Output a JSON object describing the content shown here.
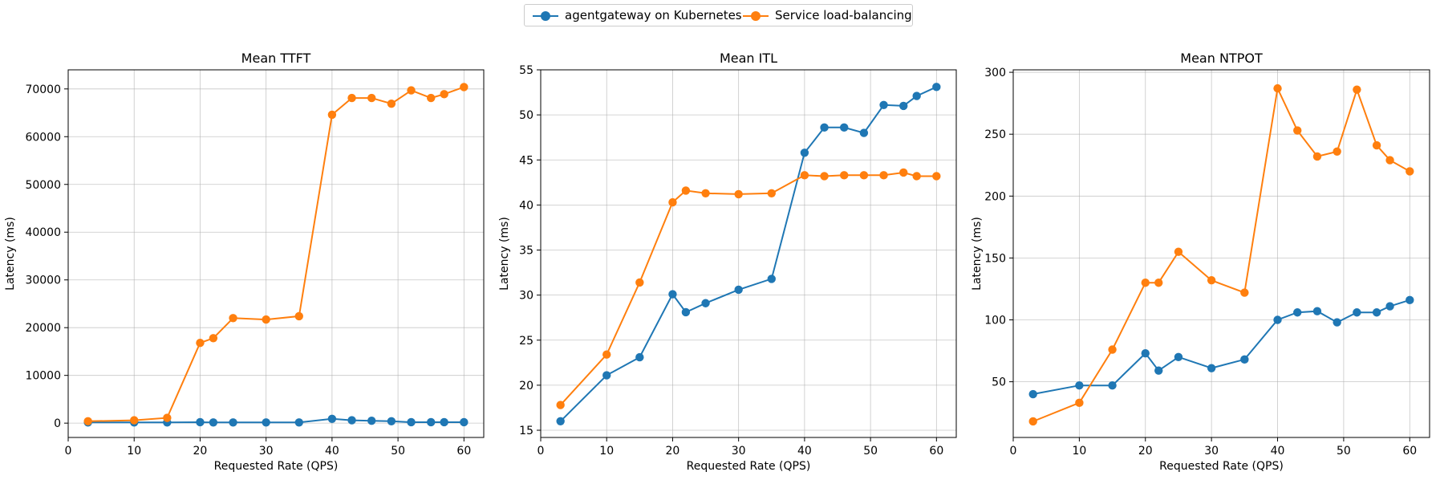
{
  "legend": {
    "placement": "top-center",
    "entries": [
      {
        "name": "agentgateway on Kubernetes",
        "color": "#1f77b4"
      },
      {
        "name": "Service load-balancing",
        "color": "#ff7f0e"
      }
    ]
  },
  "chart_data": [
    {
      "type": "line",
      "title": "Mean TTFT",
      "xlabel": "Requested Rate (QPS)",
      "ylabel": "Latency (ms)",
      "xlim": [
        0,
        63
      ],
      "ylim": [
        -3000,
        74000
      ],
      "xticks": [
        0,
        10,
        20,
        30,
        40,
        50,
        60
      ],
      "yticks": [
        0,
        10000,
        20000,
        30000,
        40000,
        50000,
        60000,
        70000
      ],
      "grid": true,
      "x": [
        3,
        10,
        15,
        20,
        22,
        25,
        30,
        35,
        40,
        43,
        46,
        49,
        52,
        55,
        57,
        60
      ],
      "series": [
        {
          "name": "agentgateway on Kubernetes",
          "color": "#1f77b4",
          "values": [
            150,
            150,
            150,
            200,
            150,
            150,
            150,
            150,
            900,
            600,
            500,
            400,
            200,
            200,
            200,
            200
          ]
        },
        {
          "name": "Service load-balancing",
          "color": "#ff7f0e",
          "values": [
            400,
            600,
            1100,
            16800,
            17800,
            22000,
            21700,
            22400,
            64600,
            68100,
            68100,
            66900,
            69700,
            68100,
            68900,
            70400
          ]
        }
      ]
    },
    {
      "type": "line",
      "title": "Mean ITL",
      "xlabel": "Requested Rate (QPS)",
      "ylabel": "Latency (ms)",
      "xlim": [
        0,
        63
      ],
      "ylim": [
        14.2,
        55
      ],
      "xticks": [
        0,
        10,
        20,
        30,
        40,
        50,
        60
      ],
      "yticks": [
        15,
        20,
        25,
        30,
        35,
        40,
        45,
        50,
        55
      ],
      "grid": true,
      "x": [
        3,
        10,
        15,
        20,
        22,
        25,
        30,
        35,
        40,
        43,
        46,
        49,
        52,
        55,
        57,
        60
      ],
      "series": [
        {
          "name": "agentgateway on Kubernetes",
          "color": "#1f77b4",
          "values": [
            16.0,
            21.1,
            23.1,
            30.1,
            28.1,
            29.1,
            30.6,
            31.8,
            45.8,
            48.6,
            48.6,
            48.0,
            51.1,
            51.0,
            52.1,
            53.1
          ]
        },
        {
          "name": "Service load-balancing",
          "color": "#ff7f0e",
          "values": [
            17.8,
            23.4,
            31.4,
            40.3,
            41.6,
            41.3,
            41.2,
            41.3,
            43.3,
            43.2,
            43.3,
            43.3,
            43.3,
            43.6,
            43.2,
            43.2
          ]
        }
      ]
    },
    {
      "type": "line",
      "title": "Mean NTPOT",
      "xlabel": "Requested Rate (QPS)",
      "ylabel": "Latency (ms)",
      "xlim": [
        0,
        63
      ],
      "ylim": [
        5,
        302
      ],
      "xticks": [
        0,
        10,
        20,
        30,
        40,
        50,
        60
      ],
      "yticks": [
        50,
        100,
        150,
        200,
        250,
        300
      ],
      "grid": true,
      "x": [
        3,
        10,
        15,
        20,
        22,
        25,
        30,
        35,
        40,
        43,
        46,
        49,
        52,
        55,
        57,
        60
      ],
      "series": [
        {
          "name": "agentgateway on Kubernetes",
          "color": "#1f77b4",
          "values": [
            40,
            47,
            47,
            73,
            59,
            70,
            61,
            68,
            100,
            106,
            107,
            98,
            106,
            106,
            111,
            116
          ]
        },
        {
          "name": "Service load-balancing",
          "color": "#ff7f0e",
          "values": [
            18,
            33,
            76,
            130,
            130,
            155,
            132,
            122,
            287,
            253,
            232,
            236,
            286,
            241,
            229,
            220
          ]
        }
      ]
    }
  ]
}
